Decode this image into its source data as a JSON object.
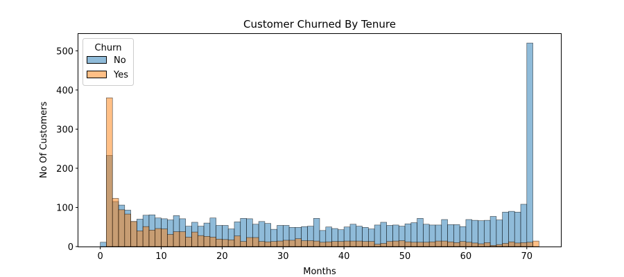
{
  "chart_data": {
    "type": "bar",
    "subtype": "overlaid-histogram",
    "title": "Customer Churned By Tenure",
    "xlabel": "Months",
    "ylabel": "No Of Customers",
    "xlim": [
      -3.6,
      75.6
    ],
    "ylim": [
      0,
      545
    ],
    "xticks": [
      0,
      10,
      20,
      30,
      40,
      50,
      60,
      70
    ],
    "yticks": [
      0,
      100,
      200,
      300,
      400,
      500
    ],
    "grid": false,
    "legend": {
      "title": "Churn",
      "placement": "top-left"
    },
    "bin_width": 1,
    "series": [
      {
        "name": "No",
        "color": "#1f77b4",
        "x": [
          0,
          1,
          2,
          3,
          4,
          5,
          6,
          7,
          8,
          9,
          10,
          11,
          12,
          13,
          14,
          15,
          16,
          17,
          18,
          19,
          20,
          21,
          22,
          23,
          24,
          25,
          26,
          27,
          28,
          29,
          30,
          31,
          32,
          33,
          34,
          35,
          36,
          37,
          38,
          39,
          40,
          41,
          42,
          43,
          44,
          45,
          46,
          47,
          48,
          49,
          50,
          51,
          52,
          53,
          54,
          55,
          56,
          57,
          58,
          59,
          60,
          61,
          62,
          63,
          64,
          65,
          66,
          67,
          68,
          69,
          70,
          71
        ],
        "values": [
          11,
          233,
          115,
          106,
          93,
          64,
          70,
          80,
          81,
          73,
          71,
          68,
          79,
          71,
          52,
          62,
          52,
          60,
          73,
          54,
          54,
          45,
          63,
          72,
          71,
          57,
          64,
          59,
          44,
          54,
          54,
          49,
          49,
          51,
          52,
          72,
          41,
          50,
          46,
          43,
          50,
          57,
          52,
          49,
          45,
          55,
          62,
          54,
          55,
          52,
          58,
          61,
          72,
          57,
          55,
          55,
          69,
          56,
          56,
          51,
          69,
          67,
          66,
          67,
          77,
          68,
          88,
          90,
          88,
          108,
          520,
          0
        ]
      },
      {
        "name": "Yes",
        "color": "#ff7f0e",
        "x": [
          0,
          1,
          2,
          3,
          4,
          5,
          6,
          7,
          8,
          9,
          10,
          11,
          12,
          13,
          14,
          15,
          16,
          17,
          18,
          19,
          20,
          21,
          22,
          23,
          24,
          25,
          26,
          27,
          28,
          29,
          30,
          31,
          32,
          33,
          34,
          35,
          36,
          37,
          38,
          39,
          40,
          41,
          42,
          43,
          44,
          45,
          46,
          47,
          48,
          49,
          50,
          51,
          52,
          53,
          54,
          55,
          56,
          57,
          58,
          59,
          60,
          61,
          62,
          63,
          64,
          65,
          66,
          67,
          68,
          69,
          70,
          71
        ],
        "values": [
          0,
          380,
          123,
          94,
          83,
          64,
          40,
          51,
          42,
          46,
          45,
          31,
          38,
          38,
          24,
          37,
          28,
          26,
          24,
          19,
          18,
          17,
          27,
          13,
          23,
          23,
          13,
          12,
          13,
          14,
          16,
          16,
          20,
          15,
          15,
          14,
          11,
          12,
          13,
          13,
          14,
          14,
          14,
          13,
          13,
          6,
          8,
          13,
          14,
          15,
          12,
          11,
          11,
          11,
          12,
          14,
          14,
          12,
          10,
          13,
          11,
          9,
          7,
          10,
          3,
          5,
          8,
          12,
          9,
          10,
          11,
          14
        ]
      }
    ]
  }
}
